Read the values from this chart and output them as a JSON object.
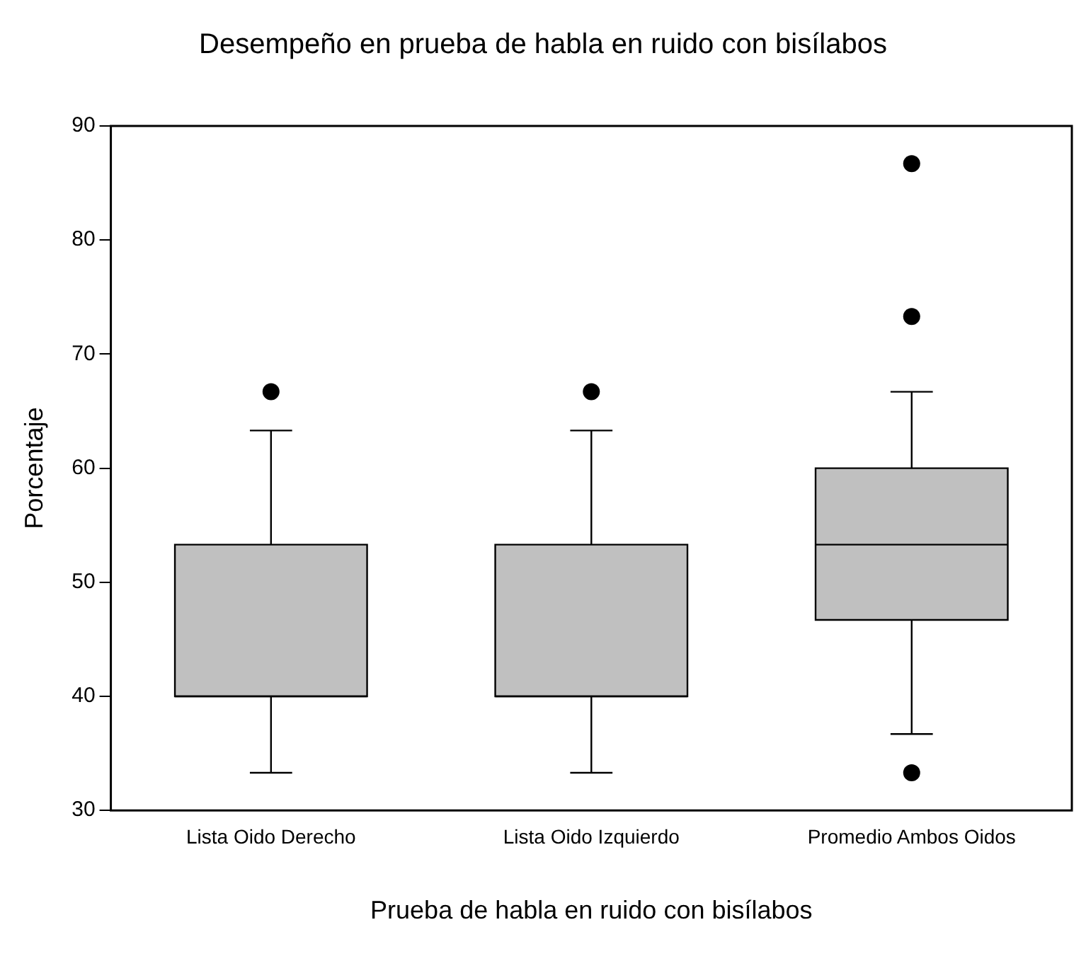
{
  "chart_data": {
    "type": "box",
    "title": "Desempeño en prueba de habla en ruido con bisílabos",
    "xlabel": "Prueba de habla en ruido con bisílabos",
    "ylabel": "Porcentaje",
    "categories": [
      "Lista Oido Derecho",
      "Lista Oido Izquierdo",
      "Promedio Ambos Oidos"
    ],
    "color": "#c0c0c0",
    "boxes": [
      {
        "low": 33.3,
        "q1": 40,
        "median": 40,
        "q3": 53.3,
        "high": 63.3,
        "outliers": [
          66.7
        ]
      },
      {
        "low": 33.3,
        "q1": 40,
        "median": 40,
        "q3": 53.3,
        "high": 63.3,
        "outliers": [
          66.7
        ]
      },
      {
        "low": 36.7,
        "q1": 46.7,
        "median": 53.3,
        "q3": 60,
        "high": 66.7,
        "outliers": [
          33.3,
          73.3,
          86.7
        ]
      }
    ],
    "ylim": [
      30,
      90
    ],
    "yticks": [
      30,
      40,
      50,
      60,
      70,
      80,
      90
    ],
    "grid": false,
    "legend": false
  }
}
